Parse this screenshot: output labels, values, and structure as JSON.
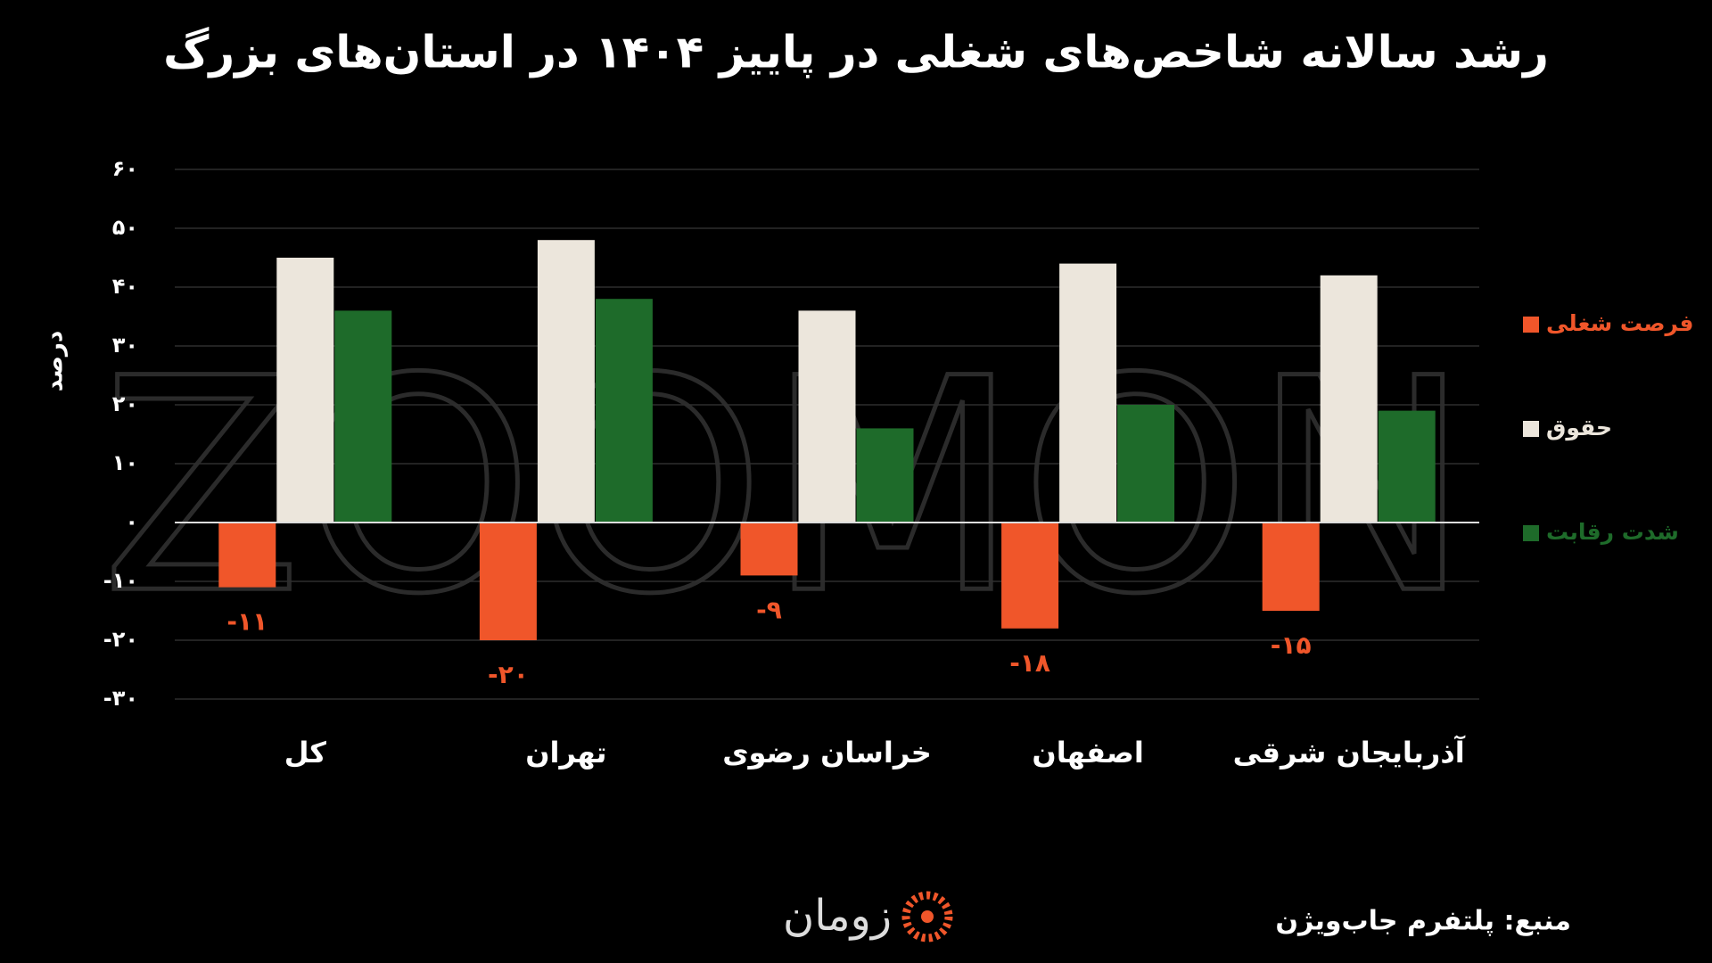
{
  "chart_data": {
    "type": "bar",
    "title": "رشد سالانه شاخص‌های شغلی در پاییز ۱۴۰۴ در استان‌های بزرگ",
    "y_label": "درصد",
    "watermark": "ZOOMON",
    "source": "منبع: پلتفرم جاب‌ویژن",
    "brand": "زومان",
    "categories": [
      "کل",
      "تهران",
      "خراسان رضوی",
      "اصفهان",
      "آذربایجان شرقی"
    ],
    "series": [
      {
        "name": "فرصت شغلی",
        "color": "#f0562a",
        "values": [
          -11,
          -20,
          -9,
          -18,
          -15
        ],
        "value_labels": [
          "-۱۱",
          "-۲۰",
          "-۹",
          "-۱۸",
          "-۱۵"
        ]
      },
      {
        "name": "حقوق",
        "color": "#ece6dc",
        "values": [
          45,
          48,
          36,
          44,
          42
        ]
      },
      {
        "name": "شدت رقابت",
        "color": "#1e6b2a",
        "values": [
          36,
          38,
          16,
          20,
          19
        ]
      }
    ],
    "ylim": [
      -30,
      60
    ],
    "yticks": [
      {
        "value": -30,
        "label": "-۳۰"
      },
      {
        "value": -20,
        "label": "-۲۰"
      },
      {
        "value": -10,
        "label": "-۱۰"
      },
      {
        "value": 0,
        "label": "۰"
      },
      {
        "value": 10,
        "label": "۱۰"
      },
      {
        "value": 20,
        "label": "۲۰"
      },
      {
        "value": 30,
        "label": "۳۰"
      },
      {
        "value": 40,
        "label": "۴۰"
      },
      {
        "value": 50,
        "label": "۵۰"
      },
      {
        "value": 60,
        "label": "۶۰"
      }
    ],
    "grid": true,
    "legend": "right"
  }
}
